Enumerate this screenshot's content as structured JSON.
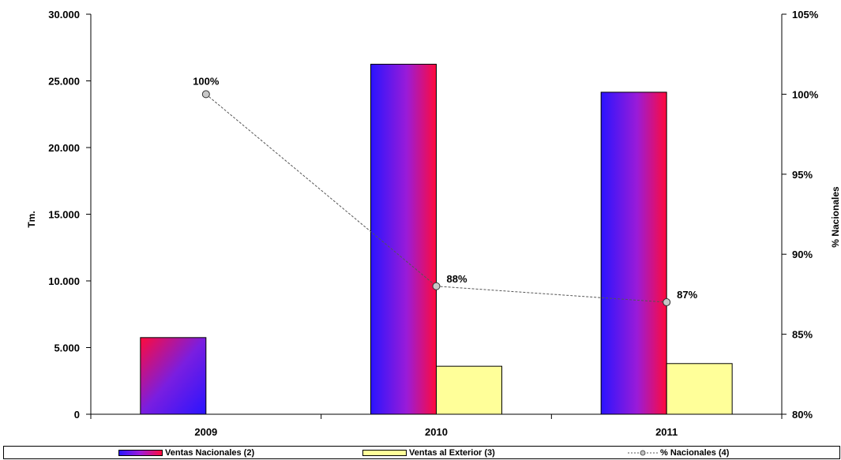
{
  "chart_data": {
    "type": "bar",
    "categories": [
      "2009",
      "2010",
      "2011"
    ],
    "series": [
      {
        "name": "Ventas Nacionales (2)",
        "kind": "bar",
        "axis": "left",
        "values": [
          5750,
          26250,
          24150
        ],
        "color": "gradient red-blue"
      },
      {
        "name": "Ventas al Exterior (3)",
        "kind": "bar",
        "axis": "left",
        "values": [
          0,
          3600,
          3800
        ],
        "color": "#FFFF99"
      },
      {
        "name": "% Nacionales (4)",
        "kind": "line",
        "axis": "right",
        "values": [
          100,
          88,
          87
        ],
        "labels": [
          "100%",
          "88%",
          "87%"
        ],
        "color": "#808080"
      }
    ],
    "ylabel": "Tm.",
    "ylabel_right": "% Nacionales",
    "ylim": [
      0,
      30000
    ],
    "ylim_right": [
      80,
      105
    ],
    "y_ticks": [
      "0",
      "5.000",
      "10.000",
      "15.000",
      "20.000",
      "25.000",
      "30.000"
    ],
    "y_ticks_right": [
      "80%",
      "85%",
      "90%",
      "95%",
      "100%",
      "105%"
    ],
    "grid": false,
    "legend_position": "bottom"
  }
}
